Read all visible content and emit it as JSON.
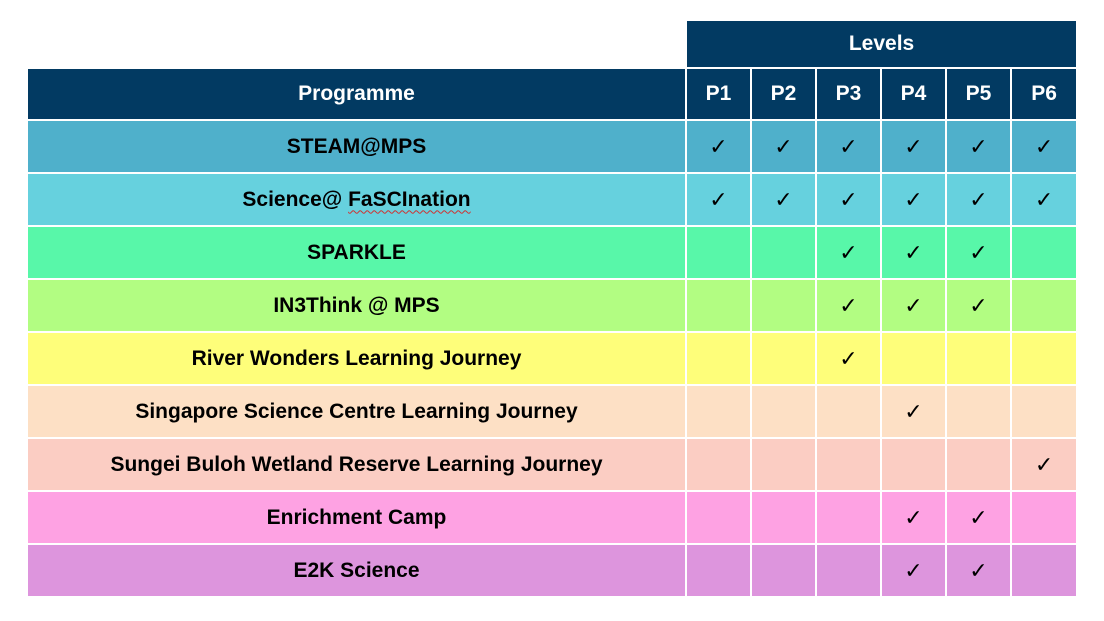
{
  "table": {
    "group_header": "Levels",
    "programme_header": "Programme",
    "levels": [
      "P1",
      "P2",
      "P3",
      "P4",
      "P5",
      "P6"
    ],
    "check_glyph": "✓",
    "rows": [
      {
        "programme": "STEAM@MPS",
        "color": "#4fb0cb",
        "checks": [
          true,
          true,
          true,
          true,
          true,
          true
        ]
      },
      {
        "programme": "Science@ ",
        "programme_underlined": "FaSCInation",
        "color": "#66d1de",
        "checks": [
          true,
          true,
          true,
          true,
          true,
          true
        ]
      },
      {
        "programme": "SPARKLE",
        "color": "#58f7a9",
        "checks": [
          false,
          false,
          true,
          true,
          true,
          false
        ]
      },
      {
        "programme": "IN3Think @ MPS",
        "color": "#b2fd82",
        "checks": [
          false,
          false,
          true,
          true,
          true,
          false
        ]
      },
      {
        "programme": "River Wonders Learning Journey",
        "color": "#fefe7a",
        "checks": [
          false,
          false,
          true,
          false,
          false,
          false
        ]
      },
      {
        "programme": "Singapore Science Centre Learning Journey",
        "color": "#fde0c5",
        "checks": [
          false,
          false,
          false,
          true,
          false,
          false
        ]
      },
      {
        "programme": "Sungei Buloh Wetland Reserve Learning Journey",
        "color": "#fbcdc3",
        "checks": [
          false,
          false,
          false,
          false,
          false,
          true
        ]
      },
      {
        "programme": "Enrichment Camp",
        "color": "#fea2e3",
        "checks": [
          false,
          false,
          false,
          true,
          true,
          false
        ]
      },
      {
        "programme": "E2K Science",
        "color": "#dd95dd",
        "checks": [
          false,
          false,
          false,
          true,
          true,
          false
        ]
      }
    ]
  }
}
